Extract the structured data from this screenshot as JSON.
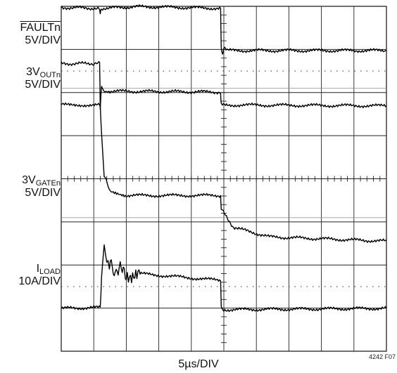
{
  "chart_data": {
    "type": "line",
    "title": "",
    "xlabel": "5µs/DIV",
    "figure_id": "4242 F07",
    "grid": true,
    "x_divisions": 10,
    "y_divisions": 8,
    "x_unit": "µs",
    "traces": [
      {
        "name_prefix": "",
        "name_main": "FAULTn",
        "name_sub": "",
        "overline": true,
        "scale": "5V/DIV",
        "unit": "V",
        "x": [
          0,
          5.8,
          6.0,
          6.2,
          12,
          24.5,
          24.6,
          24.8,
          25.0,
          25.5,
          50
        ],
        "y": [
          5,
          4.9,
          4.4,
          4.9,
          5.1,
          4.9,
          0.3,
          -0.5,
          0.3,
          0,
          0
        ]
      },
      {
        "name_prefix": "3V",
        "name_main": "",
        "name_sub": "OUTn",
        "overline": false,
        "scale": "5V/DIV",
        "unit": "V",
        "x": [
          0,
          4.5,
          5.9,
          6.0,
          6.2,
          6.5,
          7.5,
          24.5,
          24.6,
          50
        ],
        "y": [
          3.3,
          3.3,
          3.3,
          -1.8,
          0.8,
          0.2,
          0.1,
          0,
          -1.5,
          -1.6
        ]
      },
      {
        "name_prefix": "3V",
        "name_main": "",
        "name_sub": "GATEn",
        "overline": false,
        "scale": "5V/DIV",
        "unit": "V",
        "x": [
          0,
          5.9,
          6.0,
          6.2,
          6.6,
          7.5,
          10,
          24.5,
          24.6,
          26.5,
          32,
          50
        ],
        "y": [
          9.5,
          9.5,
          9.4,
          6.0,
          1.2,
          -0.4,
          -1.0,
          -1.0,
          -2.6,
          -4.7,
          -5.8,
          -6.3
        ]
      },
      {
        "name_prefix": "I",
        "name_main": "",
        "name_sub": "LOAD",
        "overline": false,
        "scale": "10A/DIV",
        "unit": "A",
        "x": [
          0,
          6.0,
          6.2,
          6.6,
          7.0,
          7.4,
          8.0,
          8.6,
          10,
          24.5,
          24.6,
          25.0,
          50
        ],
        "y": [
          0,
          0.2,
          7.0,
          14.7,
          10.5,
          8.8,
          9.4,
          8.6,
          8.3,
          6.5,
          0.5,
          -0.3,
          0
        ]
      }
    ]
  }
}
